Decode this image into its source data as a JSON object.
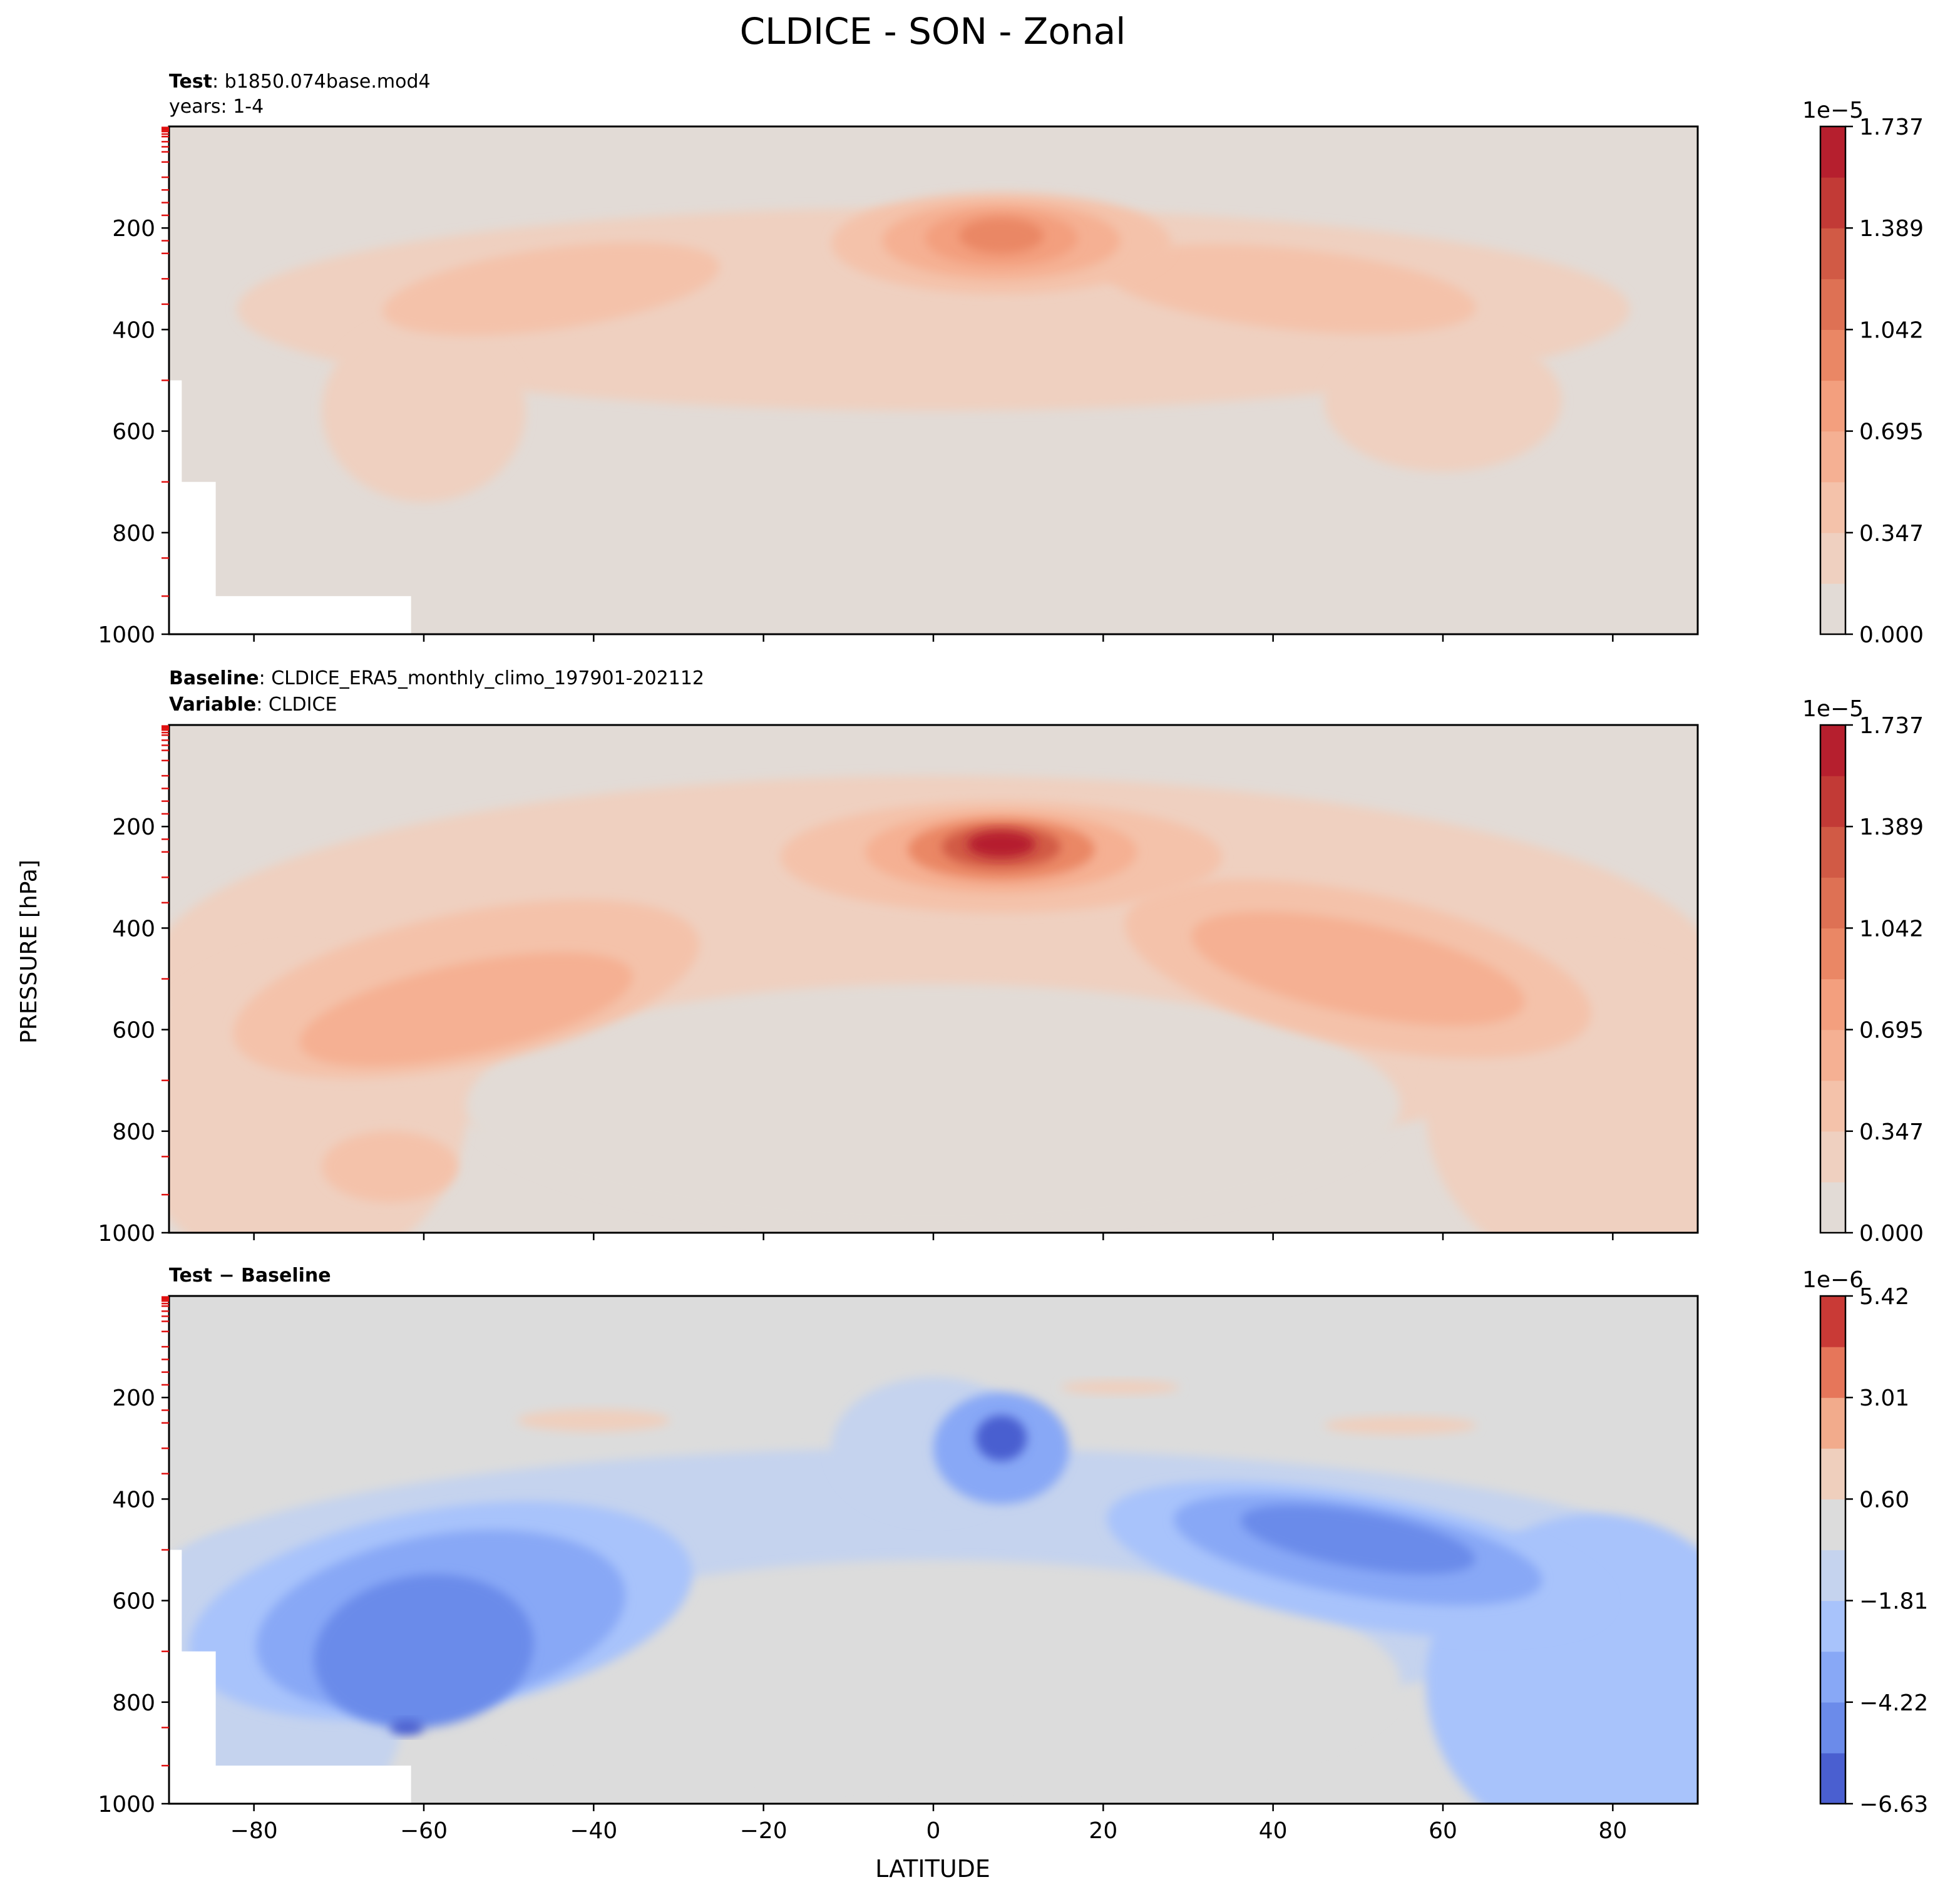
{
  "figure": {
    "title": "CLDICE - SON - Zonal",
    "ylabel": "PRESSURE [hPa]",
    "xlabel": "LATITUDE"
  },
  "panels": [
    {
      "id": "test",
      "header_lines": [
        {
          "bold": "Test",
          "rest": ": b1850.074base.mod4"
        },
        {
          "bold": "",
          "rest": "years: 1-4"
        }
      ],
      "colorbar": {
        "exponent": "1e−5",
        "tick_labels": [
          "0.000",
          "0.347",
          "0.695",
          "1.042",
          "1.389",
          "1.737"
        ],
        "colors": [
          "#e2dbd6",
          "#efd0c0",
          "#f4c2aa",
          "#f5b093",
          "#f39f7e",
          "#ea8765",
          "#de7154",
          "#d15a45",
          "#c23a36",
          "#b61f2e"
        ]
      }
    },
    {
      "id": "baseline",
      "header_lines": [
        {
          "bold": "Baseline",
          "rest": ": CLDICE_ERA5_monthly_climo_197901-202112"
        },
        {
          "bold": "Variable",
          "rest": ": CLDICE"
        }
      ],
      "colorbar": {
        "exponent": "1e−5",
        "tick_labels": [
          "0.000",
          "0.347",
          "0.695",
          "1.042",
          "1.389",
          "1.737"
        ],
        "colors": [
          "#e2dbd6",
          "#efd0c0",
          "#f4c2aa",
          "#f5b093",
          "#f39f7e",
          "#ea8765",
          "#de7154",
          "#d15a45",
          "#c23a36",
          "#b61f2e"
        ]
      }
    },
    {
      "id": "difference",
      "header_lines": [
        {
          "bold": "Test − Baseline",
          "rest": ""
        }
      ],
      "colorbar": {
        "exponent": "1e−6",
        "tick_labels": [
          "−6.63",
          "−4.22",
          "−1.81",
          "0.60",
          "3.01",
          "5.42"
        ],
        "colors": [
          "#4a5fd0",
          "#6b8bea",
          "#88a8f6",
          "#a8c3fb",
          "#c5d3ee",
          "#dcdcdc",
          "#efcfbd",
          "#f2ab8c",
          "#e6765a",
          "#c93a36"
        ]
      }
    }
  ],
  "chart_data": [
    {
      "type": "heatmap",
      "title": "Test: b1850.074base.mod4 / years: 1-4",
      "xlabel": "LATITUDE",
      "ylabel": "PRESSURE [hPa]",
      "xlim": [
        -90,
        90
      ],
      "ylim": [
        1000,
        0
      ],
      "x_ticks": [
        -80,
        -60,
        -40,
        -20,
        0,
        20,
        40,
        60,
        80
      ],
      "y_ticks": [
        200,
        400,
        600,
        800,
        1000
      ],
      "y_tick_labels": [
        "200",
        "400",
        "600",
        "800",
        "1000"
      ],
      "colorbar_range": [
        0,
        1.91e-05
      ],
      "features": [
        {
          "lat": 8,
          "pressure": 215,
          "value": 1.2e-05
        },
        {
          "lat": -45,
          "pressure": 320,
          "value": 4.5e-06
        },
        {
          "lat": 35,
          "pressure": 300,
          "value": 4.8e-06
        }
      ]
    },
    {
      "type": "heatmap",
      "title": "Baseline: CLDICE_ERA5_monthly_climo_197901-202112 / Variable: CLDICE",
      "xlabel": "LATITUDE",
      "ylabel": "PRESSURE [hPa]",
      "xlim": [
        -90,
        90
      ],
      "ylim": [
        1000,
        0
      ],
      "x_ticks": [
        -80,
        -60,
        -40,
        -20,
        0,
        20,
        40,
        60,
        80
      ],
      "y_ticks": [
        200,
        400,
        600,
        800,
        1000
      ],
      "y_tick_labels": [
        "200",
        "400",
        "600",
        "800",
        "1000"
      ],
      "colorbar_range": [
        0,
        1.91e-05
      ],
      "features": [
        {
          "lat": 8,
          "pressure": 235,
          "value": 1.85e-05
        },
        {
          "lat": -55,
          "pressure": 530,
          "value": 8e-06
        },
        {
          "lat": 50,
          "pressure": 430,
          "value": 8e-06
        },
        {
          "lat": -64,
          "pressure": 870,
          "value": 8e-06
        }
      ]
    },
    {
      "type": "heatmap",
      "title": "Test − Baseline",
      "xlabel": "LATITUDE",
      "ylabel": "PRESSURE [hPa]",
      "xlim": [
        -90,
        90
      ],
      "ylim": [
        1000,
        0
      ],
      "x_ticks": [
        -80,
        -60,
        -40,
        -20,
        0,
        20,
        40,
        60,
        80
      ],
      "x_tick_labels": [
        "−80",
        "−60",
        "−40",
        "−20",
        "0",
        "20",
        "40",
        "60",
        "80"
      ],
      "y_ticks": [
        200,
        400,
        600,
        800,
        1000
      ],
      "y_tick_labels": [
        "200",
        "400",
        "600",
        "800",
        "1000"
      ],
      "colorbar_range": [
        -7.83e-06,
        6.63e-06
      ],
      "features": [
        {
          "lat": 8,
          "pressure": 280,
          "value": -6.6e-06
        },
        {
          "lat": -62,
          "pressure": 850,
          "value": -6.6e-06
        },
        {
          "lat": -55,
          "pressure": 560,
          "value": -5.4e-06
        },
        {
          "lat": 50,
          "pressure": 480,
          "value": -5.4e-06
        },
        {
          "lat": -40,
          "pressure": 250,
          "value": 1.8e-06
        },
        {
          "lat": 55,
          "pressure": 260,
          "value": 1.8e-06
        }
      ]
    }
  ]
}
